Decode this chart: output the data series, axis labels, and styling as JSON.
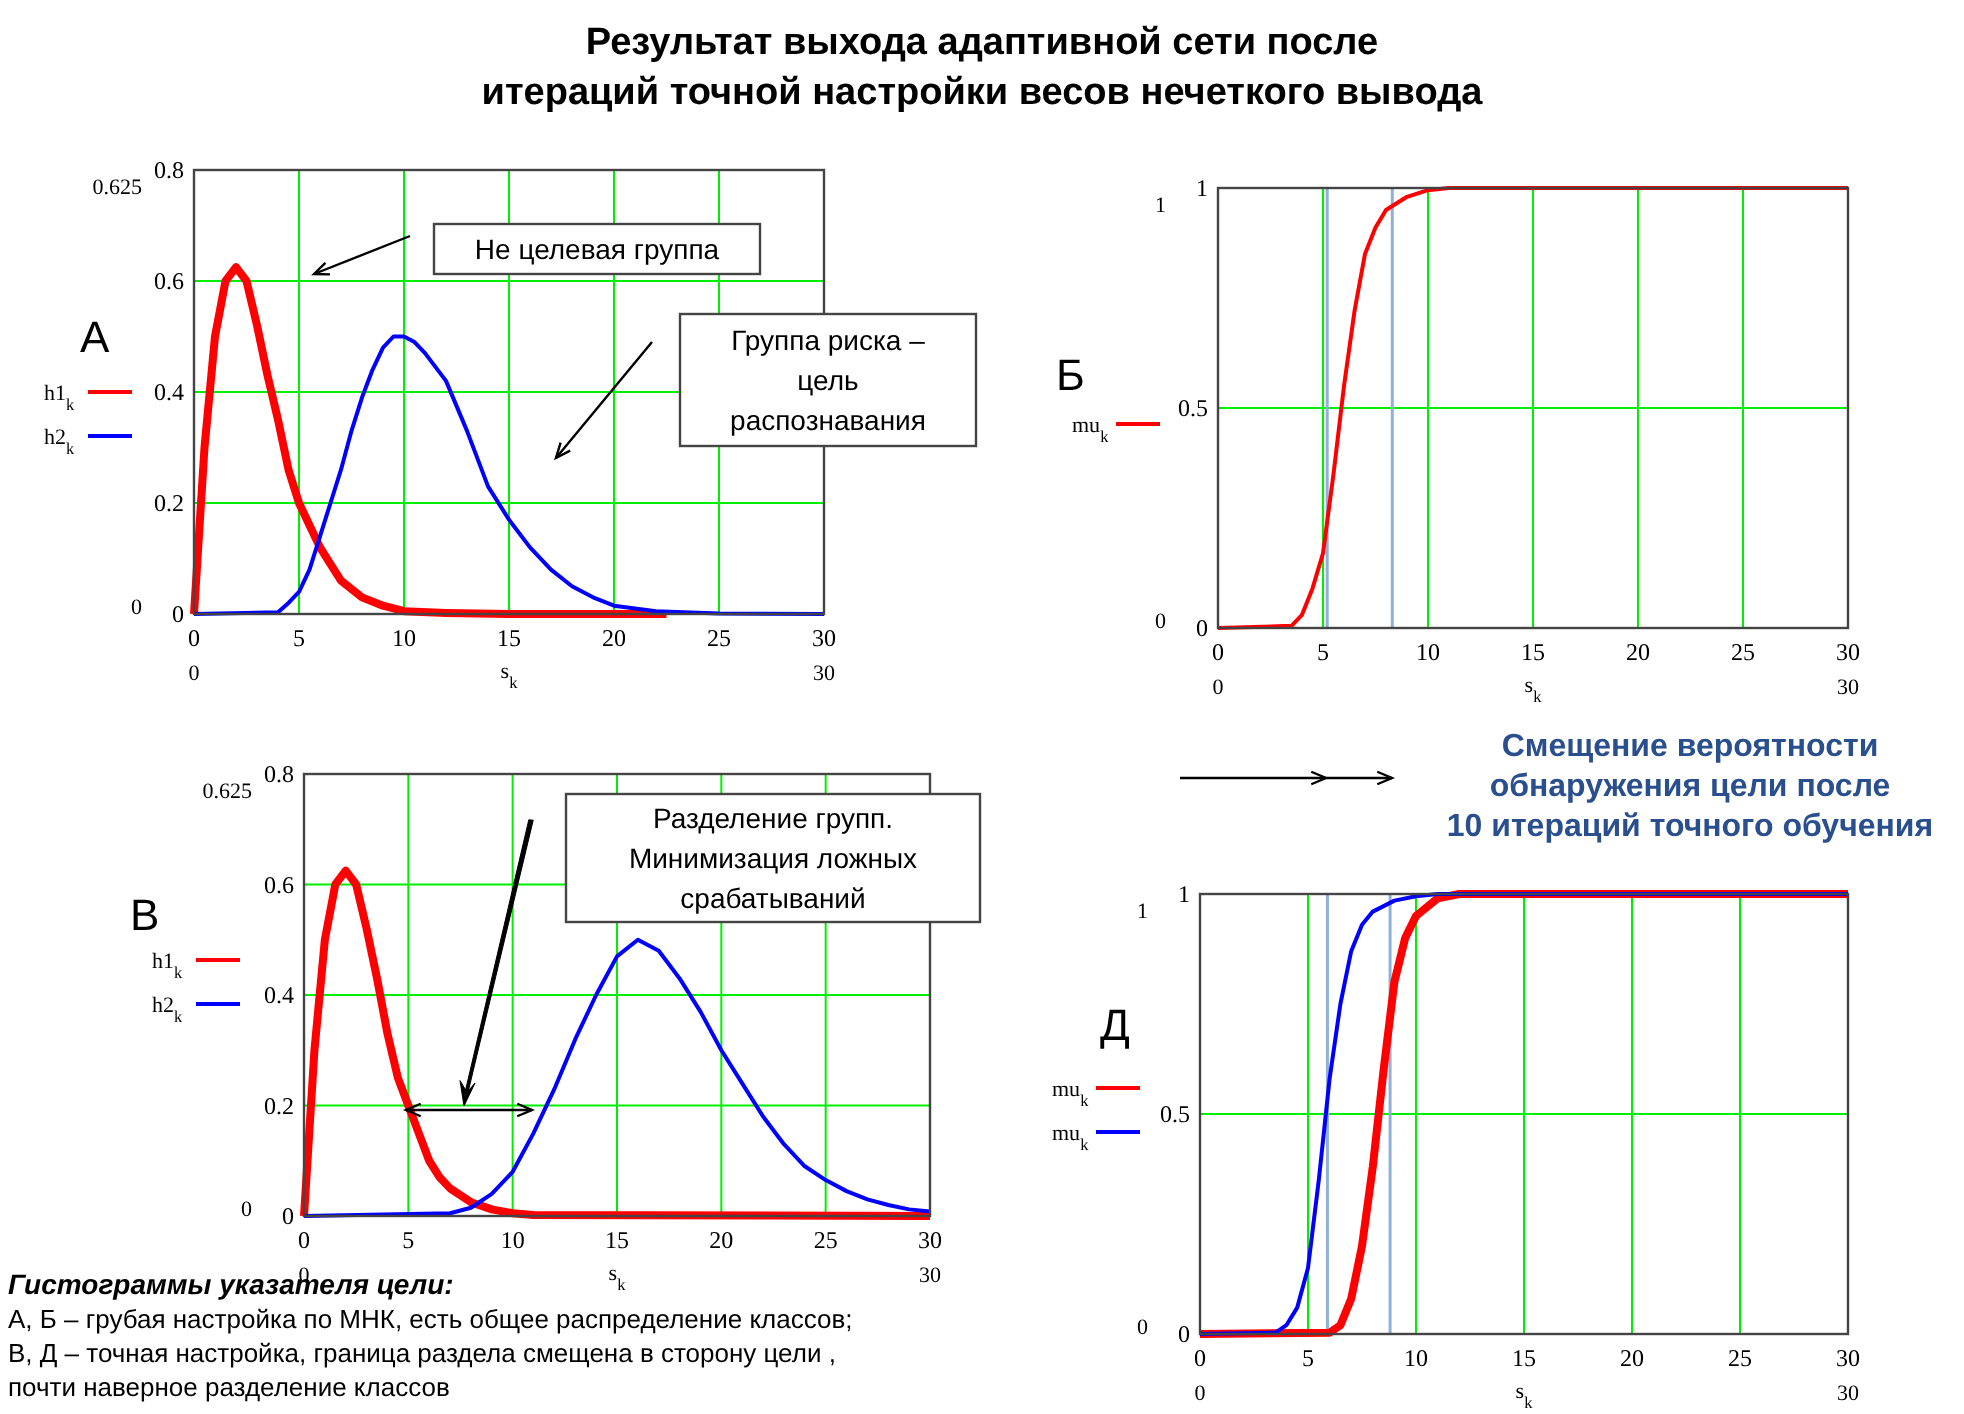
{
  "chart_data": [
    {
      "type": "line",
      "title": "А",
      "xlabel": "s$_{k}$",
      "xlim": [
        0,
        30
      ],
      "xticks": [
        0,
        5,
        10,
        15,
        20,
        25,
        30
      ],
      "ylim": [
        0,
        0.8
      ],
      "yticks": [
        0,
        0.2,
        0.4,
        0.6,
        0.8
      ],
      "grid": true,
      "legend": "left",
      "series": [
        {
          "name": "h1$_{k}$",
          "color": "#ff0000",
          "x": [
            0,
            0.5,
            1,
            1.5,
            2,
            2.5,
            3,
            3.5,
            4,
            4.5,
            5,
            5.5,
            6,
            6.5,
            7,
            8,
            9,
            10,
            12,
            15,
            22.5
          ],
          "values": [
            0,
            0.3,
            0.5,
            0.6,
            0.625,
            0.6,
            0.52,
            0.43,
            0.35,
            0.26,
            0.2,
            0.16,
            0.12,
            0.09,
            0.06,
            0.03,
            0.015,
            0.005,
            0.002,
            0,
            0
          ]
        },
        {
          "name": "h2$_{k}$",
          "color": "#0000ff",
          "x": [
            0,
            4,
            4.5,
            5,
            5.5,
            6,
            6.5,
            7,
            7.5,
            8,
            8.5,
            9,
            9.5,
            10,
            10.5,
            11,
            12,
            13,
            14,
            15,
            16,
            17,
            18,
            19,
            20,
            22,
            25,
            30
          ],
          "values": [
            0,
            0.003,
            0.02,
            0.04,
            0.08,
            0.14,
            0.2,
            0.26,
            0.33,
            0.39,
            0.44,
            0.48,
            0.5,
            0.5,
            0.49,
            0.47,
            0.42,
            0.33,
            0.23,
            0.17,
            0.12,
            0.08,
            0.05,
            0.03,
            0.015,
            0.005,
            0.001,
            0
          ]
        }
      ],
      "annotations": [
        "Результат  выхода адаптивной сети после\nитераций точной настройки весов нечеткого вывода",
        "Не целевая группа",
        "Группа риска –\nцель\nраспознавания",
        "0.625",
        "0",
        "0",
        "30"
      ]
    },
    {
      "type": "line",
      "title": "Б",
      "xlabel": "s$_{k}$",
      "xlim": [
        0,
        30
      ],
      "xticks": [
        0,
        5,
        10,
        15,
        20,
        25,
        30
      ],
      "ylim": [
        0,
        1
      ],
      "yticks": [
        0,
        0.5,
        1
      ],
      "grid": true,
      "legend": "left",
      "series": [
        {
          "name": "mu$_{k}$",
          "color": "#ff0000",
          "x": [
            0,
            3.5,
            4,
            4.5,
            5,
            5.5,
            6,
            6.5,
            7,
            7.5,
            8,
            9,
            10,
            11,
            30
          ],
          "values": [
            0,
            0.005,
            0.03,
            0.09,
            0.17,
            0.35,
            0.55,
            0.72,
            0.85,
            0.91,
            0.95,
            0.98,
            0.995,
            1,
            1
          ]
        }
      ],
      "ref_lines": [
        {
          "axis": "x",
          "value": 5.2,
          "color": "#8fb0d8"
        },
        {
          "axis": "x",
          "value": 8.3,
          "color": "#8fb0d8"
        }
      ],
      "annotations": [
        "1",
        "0",
        "0",
        "30"
      ]
    },
    {
      "type": "line",
      "title": "В",
      "xlabel": "s$_{k}$",
      "xlim": [
        0,
        30
      ],
      "xticks": [
        0,
        5,
        10,
        15,
        20,
        25,
        30
      ],
      "ylim": [
        0,
        0.8
      ],
      "yticks": [
        0,
        0.2,
        0.4,
        0.6,
        0.8
      ],
      "grid": true,
      "legend": "left",
      "series": [
        {
          "name": "h1$_{k}$",
          "color": "#ff0000",
          "x": [
            0,
            0.5,
            1,
            1.5,
            2,
            2.5,
            3,
            3.5,
            4,
            4.5,
            5,
            5.5,
            6,
            6.5,
            7,
            8,
            9,
            10,
            11,
            30
          ],
          "values": [
            0,
            0.3,
            0.5,
            0.6,
            0.625,
            0.6,
            0.52,
            0.43,
            0.33,
            0.25,
            0.2,
            0.15,
            0.1,
            0.07,
            0.05,
            0.025,
            0.012,
            0.005,
            0.002,
            0
          ]
        },
        {
          "name": "h2$_{k}$",
          "color": "#0000ff",
          "x": [
            0,
            7,
            8,
            9,
            10,
            11,
            12,
            13,
            14,
            15,
            16,
            17,
            18,
            19,
            20,
            21,
            22,
            23,
            24,
            25,
            26,
            27,
            28,
            29,
            30
          ],
          "values": [
            0,
            0.005,
            0.015,
            0.04,
            0.08,
            0.15,
            0.23,
            0.32,
            0.4,
            0.47,
            0.5,
            0.48,
            0.43,
            0.37,
            0.3,
            0.24,
            0.18,
            0.13,
            0.09,
            0.065,
            0.045,
            0.03,
            0.02,
            0.012,
            0.008
          ]
        }
      ],
      "annotations": [
        "Разделение групп.\nМинимизация ложных\nсрабатываний",
        "Гистограммы указателя цели:",
        "А, Б – грубая настройка по МНК, есть общее распределение классов;",
        "В, Д – точная настройка, граница раздела смещена в сторону цели ,",
        "почти наверное разделение классов",
        "0.625",
        "0",
        "0",
        "30"
      ]
    },
    {
      "type": "line",
      "title": "Д",
      "xlabel": "s$_{k}$",
      "xlim": [
        0,
        30
      ],
      "xticks": [
        0,
        5,
        10,
        15,
        20,
        25,
        30
      ],
      "ylim": [
        0,
        1
      ],
      "yticks": [
        0,
        0.5,
        1
      ],
      "grid": true,
      "legend": "left",
      "series": [
        {
          "name": "mu$_{k}$",
          "color": "#ff0000",
          "x": [
            0,
            6,
            6.5,
            7,
            7.5,
            8,
            8.5,
            9,
            9.5,
            10,
            11,
            12,
            30
          ],
          "values": [
            0,
            0.003,
            0.02,
            0.08,
            0.2,
            0.38,
            0.6,
            0.8,
            0.9,
            0.95,
            0.99,
            1,
            1
          ]
        },
        {
          "name": "mu$_{k}$",
          "color": "#0000ff",
          "x": [
            0,
            3.5,
            4,
            4.5,
            5,
            5.5,
            6,
            6.5,
            7,
            7.5,
            8,
            9,
            10,
            11,
            30
          ],
          "values": [
            0,
            0.003,
            0.02,
            0.06,
            0.15,
            0.35,
            0.58,
            0.75,
            0.87,
            0.93,
            0.96,
            0.985,
            0.995,
            1,
            1
          ]
        }
      ],
      "ref_lines": [
        {
          "axis": "x",
          "value": 5.9,
          "color": "#8fb0d8"
        },
        {
          "axis": "x",
          "value": 8.8,
          "color": "#8fb0d8"
        }
      ],
      "annotations": [
        "Смещение вероятности\nобнаружения цели после\n10 итераций точного обучения",
        "1",
        "0",
        "0",
        "30"
      ]
    }
  ]
}
